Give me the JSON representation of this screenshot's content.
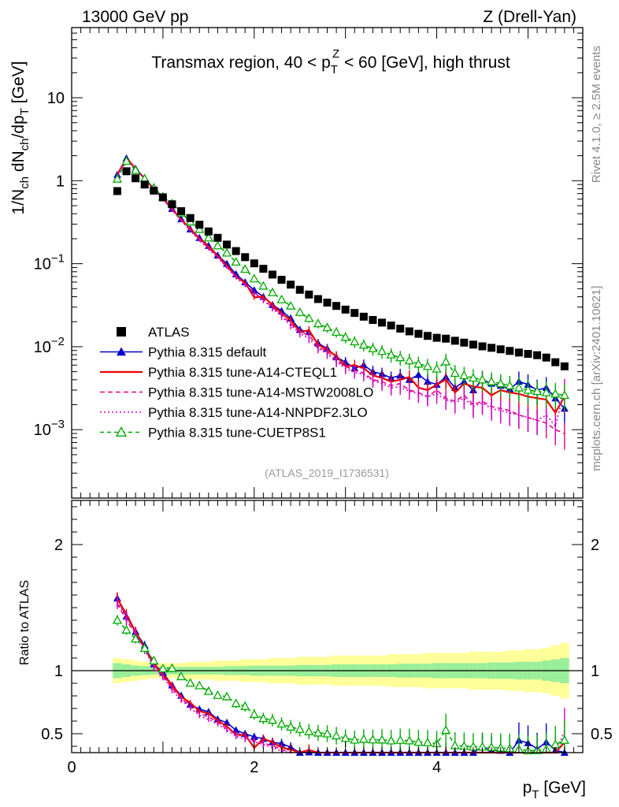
{
  "header": {
    "left": "13000 GeV pp",
    "right": "Z (Drell-Yan)"
  },
  "side_labels": {
    "rivet": "Rivet 4.1.0, ≥ 2.5M events",
    "mcplots": "mcplots.cern.ch [arXiv:2401.10621]"
  },
  "chart_data": {
    "type": "line",
    "title": "Transmax region, 40 < p_T^Z < 60 [GeV], high thrust",
    "analysis_id": "(ATLAS_2019_I1736531)",
    "xlabel": "p_T [GeV]",
    "ylabel": "1/N_ch dN_ch/dp_T [GeV]",
    "ratio_ylabel": "Ratio to ATLAS",
    "xlim": [
      0,
      5.6
    ],
    "ylim": [
      0.00015,
      70
    ],
    "yscale": "log",
    "ratio_ylim": [
      0.35,
      2.35
    ],
    "x_ticks": [
      "0",
      "2",
      "4"
    ],
    "y_ticks": [
      "10",
      "1",
      "10^-1",
      "10^-2",
      "10^-3"
    ],
    "ratio_ticks": [
      "2",
      "1",
      "0.5"
    ],
    "x": [
      0.5,
      0.6,
      0.7,
      0.8,
      0.9,
      1.0,
      1.1,
      1.2,
      1.3,
      1.4,
      1.5,
      1.6,
      1.7,
      1.8,
      1.9,
      2.0,
      2.1,
      2.2,
      2.3,
      2.4,
      2.5,
      2.6,
      2.7,
      2.8,
      2.9,
      3.0,
      3.1,
      3.2,
      3.3,
      3.4,
      3.5,
      3.6,
      3.7,
      3.8,
      3.9,
      4.0,
      4.1,
      4.2,
      4.3,
      4.4,
      4.5,
      4.6,
      4.7,
      4.8,
      4.9,
      5.0,
      5.1,
      5.2,
      5.3,
      5.4
    ],
    "series": [
      {
        "name": "ATLAS",
        "style": "data",
        "color": "#000000",
        "values": [
          0.75,
          1.3,
          1.07,
          0.9,
          0.76,
          0.63,
          0.52,
          0.43,
          0.355,
          0.295,
          0.245,
          0.205,
          0.17,
          0.142,
          0.12,
          0.101,
          0.087,
          0.074,
          0.064,
          0.056,
          0.0485,
          0.0425,
          0.0375,
          0.034,
          0.031,
          0.028,
          0.0255,
          0.023,
          0.021,
          0.0195,
          0.018,
          0.0165,
          0.0153,
          0.0143,
          0.0135,
          0.0128,
          0.0125,
          0.0118,
          0.0112,
          0.0106,
          0.0101,
          0.0097,
          0.0093,
          0.0089,
          0.0085,
          0.0082,
          0.0079,
          0.0074,
          0.0065,
          0.0058
        ]
      },
      {
        "name": "Pythia 8.315 default",
        "style": "line-triangle",
        "color": "#0000cc",
        "values": [
          1.18,
          1.86,
          1.4,
          1.08,
          0.8,
          0.62,
          0.46,
          0.345,
          0.26,
          0.205,
          0.165,
          0.126,
          0.1,
          0.075,
          0.06,
          0.048,
          0.04,
          0.032,
          0.027,
          0.022,
          0.016,
          0.015,
          0.011,
          0.0095,
          0.0075,
          0.0065,
          0.0055,
          0.006,
          0.005,
          0.0047,
          0.0042,
          0.0045,
          0.004,
          0.0046,
          0.0038,
          0.0035,
          0.0043,
          0.0032,
          0.0038,
          0.003,
          0.004,
          0.0036,
          0.0034,
          0.0031,
          0.0038,
          0.0035,
          0.003,
          0.0032,
          0.0024,
          0.0018
        ]
      },
      {
        "name": "Pythia 8.315 tune-A14-CTEQL1",
        "style": "solid",
        "color": "#ee0000",
        "values": [
          1.18,
          1.88,
          1.4,
          1.06,
          0.8,
          0.61,
          0.46,
          0.34,
          0.265,
          0.2,
          0.162,
          0.124,
          0.095,
          0.07,
          0.059,
          0.0392,
          0.04,
          0.032,
          0.025,
          0.021,
          0.015,
          0.0158,
          0.0106,
          0.0092,
          0.0077,
          0.0058,
          0.006,
          0.0055,
          0.0045,
          0.0042,
          0.0038,
          0.004,
          0.0043,
          0.0032,
          0.003,
          0.0035,
          0.004,
          0.0028,
          0.0036,
          0.0033,
          0.0032,
          0.0026,
          0.003,
          0.0028,
          0.0027,
          0.0025,
          0.0024,
          0.0023,
          0.0016,
          0.0025
        ]
      },
      {
        "name": "Pythia 8.315 tune-A14-MSTW2008LO",
        "style": "dashed",
        "color": "#ee0077",
        "values": [
          1.15,
          1.82,
          1.38,
          1.06,
          0.79,
          0.6,
          0.45,
          0.335,
          0.255,
          0.195,
          0.155,
          0.121,
          0.092,
          0.071,
          0.056,
          0.045,
          0.037,
          0.03,
          0.024,
          0.019,
          0.0152,
          0.0138,
          0.0098,
          0.0088,
          0.0069,
          0.0058,
          0.0052,
          0.0048,
          0.004,
          0.0038,
          0.0034,
          0.0036,
          0.003,
          0.0028,
          0.0025,
          0.003,
          0.0024,
          0.0022,
          0.0026,
          0.002,
          0.0022,
          0.0019,
          0.0018,
          0.0017,
          0.0015,
          0.0014,
          0.0013,
          0.0012,
          0.001,
          0.0009
        ]
      },
      {
        "name": "Pythia 8.315 tune-A14-NNPDF2.3LO",
        "style": "dotted",
        "color": "#cc00cc",
        "values": [
          1.16,
          1.85,
          1.39,
          1.05,
          0.78,
          0.6,
          0.44,
          0.33,
          0.25,
          0.19,
          0.15,
          0.118,
          0.09,
          0.068,
          0.055,
          0.044,
          0.036,
          0.029,
          0.023,
          0.018,
          0.0145,
          0.0125,
          0.0095,
          0.0082,
          0.0066,
          0.0055,
          0.0049,
          0.0046,
          0.0039,
          0.0036,
          0.0032,
          0.0033,
          0.0029,
          0.0027,
          0.0025,
          0.0027,
          0.0023,
          0.0021,
          0.0024,
          0.0019,
          0.0021,
          0.0018,
          0.0017,
          0.0016,
          0.0015,
          0.0014,
          0.0013,
          0.0015,
          0.0011,
          0.003
        ]
      },
      {
        "name": "Pythia 8.315 tune-CUETP8S1",
        "style": "dashed-open-triangle",
        "color": "#00aa00",
        "values": [
          1.05,
          1.72,
          1.34,
          1.06,
          0.82,
          0.64,
          0.53,
          0.41,
          0.32,
          0.26,
          0.205,
          0.165,
          0.135,
          0.105,
          0.086,
          0.066,
          0.054,
          0.045,
          0.037,
          0.031,
          0.026,
          0.022,
          0.019,
          0.017,
          0.015,
          0.013,
          0.0115,
          0.0105,
          0.0095,
          0.0088,
          0.008,
          0.0074,
          0.0068,
          0.0062,
          0.0058,
          0.0054,
          0.0066,
          0.0048,
          0.0045,
          0.0042,
          0.004,
          0.0038,
          0.0036,
          0.0034,
          0.0032,
          0.003,
          0.0029,
          0.0028,
          0.0027,
          0.0026
        ]
      }
    ],
    "ratio_band": {
      "inner": [
        0.06,
        0.05,
        0.04,
        0.035,
        0.03,
        0.03,
        0.03,
        0.03,
        0.03,
        0.03,
        0.03,
        0.03,
        0.035,
        0.035,
        0.035,
        0.04,
        0.04,
        0.04,
        0.04,
        0.04,
        0.045,
        0.045,
        0.045,
        0.045,
        0.05,
        0.05,
        0.05,
        0.05,
        0.05,
        0.05,
        0.05,
        0.055,
        0.055,
        0.055,
        0.055,
        0.06,
        0.06,
        0.06,
        0.06,
        0.06,
        0.06,
        0.065,
        0.065,
        0.065,
        0.07,
        0.07,
        0.07,
        0.08,
        0.09,
        0.1
      ],
      "outer": [
        0.1,
        0.09,
        0.08,
        0.07,
        0.06,
        0.06,
        0.06,
        0.06,
        0.07,
        0.07,
        0.07,
        0.08,
        0.08,
        0.08,
        0.09,
        0.09,
        0.09,
        0.1,
        0.1,
        0.1,
        0.11,
        0.11,
        0.11,
        0.11,
        0.12,
        0.12,
        0.12,
        0.12,
        0.12,
        0.12,
        0.13,
        0.13,
        0.13,
        0.13,
        0.14,
        0.14,
        0.14,
        0.14,
        0.14,
        0.15,
        0.15,
        0.15,
        0.15,
        0.16,
        0.16,
        0.17,
        0.17,
        0.18,
        0.2,
        0.22
      ]
    }
  }
}
